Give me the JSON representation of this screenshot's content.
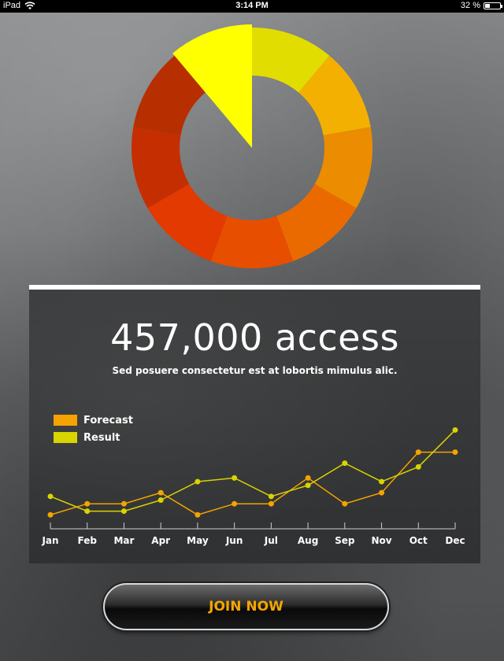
{
  "status_bar": {
    "device": "iPad",
    "time": "3:14 PM",
    "battery": "32 %",
    "battery_level": 0.32,
    "icons": [
      "wifi-icon",
      "battery-icon"
    ]
  },
  "donut": {
    "segments": [
      {
        "color": "#e2dd00",
        "value": 1
      },
      {
        "color": "#f4b000",
        "value": 1
      },
      {
        "color": "#ec8c00",
        "value": 1
      },
      {
        "color": "#eb6a00",
        "value": 1
      },
      {
        "color": "#e84e00",
        "value": 1
      },
      {
        "color": "#e23a00",
        "value": 1
      },
      {
        "color": "#c52e00",
        "value": 1
      },
      {
        "color": "#b72e00",
        "value": 1
      }
    ],
    "highlight": {
      "color": "#ffff00",
      "value": 1
    }
  },
  "panel": {
    "headline": "457,000 access",
    "subline": "Sed posuere consectetur est at lobortis mimulus alic."
  },
  "chart_data": {
    "type": "line",
    "categories": [
      "Jan",
      "Feb",
      "Mar",
      "Apr",
      "May",
      "Jun",
      "Jul",
      "Aug",
      "Sep",
      "Nov",
      "Oct",
      "Dec"
    ],
    "series": [
      {
        "name": "Forecast",
        "color": "#f4a300",
        "values": [
          20,
          35,
          35,
          50,
          20,
          35,
          35,
          70,
          35,
          50,
          105,
          105
        ]
      },
      {
        "name": "Result",
        "color": "#d9d400",
        "values": [
          45,
          25,
          25,
          40,
          65,
          70,
          45,
          60,
          90,
          65,
          85,
          135
        ]
      }
    ],
    "ylim": [
      0,
      160
    ],
    "legend_position": "top-left",
    "grid": false
  },
  "button": {
    "label": "JOIN NOW"
  }
}
